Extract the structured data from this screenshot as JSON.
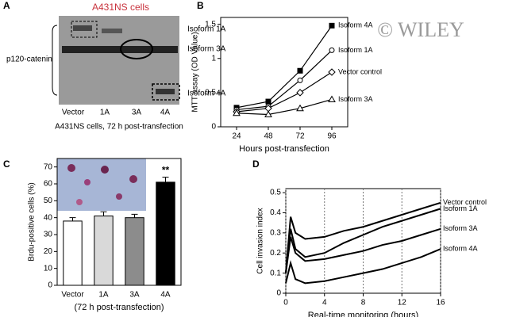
{
  "panels": [
    "A",
    "B",
    "C",
    "D"
  ],
  "blot": {
    "title": "A431NS cells",
    "protein": "p120-catenin",
    "bands": [
      "Isoform 1A",
      "Isoform 3A",
      "Isoform 4A"
    ],
    "lanes": [
      "Vector",
      "1A",
      "3A",
      "4A"
    ],
    "caption": "A431NS cells, 72 h post-transfection"
  },
  "watermark": "© WILEY",
  "chart_data": [
    {
      "type": "line",
      "xlabel": "Hours post-transfection",
      "ylabel": "MTT assay (OD  Value)",
      "x": [
        24,
        48,
        72,
        96
      ],
      "xlim": [
        12,
        108
      ],
      "xticks": [
        24,
        48,
        72,
        96
      ],
      "ylim": [
        0,
        1.6
      ],
      "yticks": [
        0,
        0.5,
        1,
        1.5
      ],
      "series": [
        {
          "name": "Isoform 4A",
          "color": "#000000",
          "marker": "square",
          "values": [
            0.28,
            0.37,
            0.82,
            1.48
          ]
        },
        {
          "name": "Isoform 1A",
          "color": "#000000",
          "marker": "circle",
          "values": [
            0.25,
            0.3,
            0.68,
            1.12
          ]
        },
        {
          "name": "Vector control",
          "color": "#000000",
          "marker": "diamond",
          "values": [
            0.22,
            0.27,
            0.5,
            0.8
          ]
        },
        {
          "name": "Isoform 3A",
          "color": "#000000",
          "marker": "triangle",
          "values": [
            0.2,
            0.18,
            0.27,
            0.4
          ]
        }
      ]
    },
    {
      "type": "bar",
      "xlabel": "(72 h post-transfection)",
      "ylabel": "Brdu-positive cells (%)",
      "categories": [
        "Vector",
        "1A",
        "3A",
        "4A"
      ],
      "values": [
        38,
        41,
        40,
        61
      ],
      "errors": [
        2,
        2.5,
        2,
        3
      ],
      "colors": [
        "#ffffff",
        "#d9d9d9",
        "#8c8c8c",
        "#000000"
      ],
      "ylim": [
        0,
        75
      ],
      "yticks": [
        0,
        10,
        20,
        30,
        40,
        50,
        60,
        70
      ],
      "annotation": {
        "text": "**",
        "category": "4A"
      }
    },
    {
      "type": "line",
      "xlabel": "Real-time monitoring (hours)",
      "ylabel": "Cell invasion index",
      "x": [
        0,
        0.5,
        1,
        2,
        4,
        6,
        8,
        10,
        12,
        14,
        16
      ],
      "xlim": [
        0,
        16
      ],
      "xticks": [
        0,
        4,
        8,
        12,
        16
      ],
      "xgrid": true,
      "ylim": [
        0,
        0.52
      ],
      "yticks": [
        0,
        0.1,
        0.2,
        0.3,
        0.4,
        0.5
      ],
      "series": [
        {
          "name": "Vector control",
          "color": "#000000",
          "values": [
            0.1,
            0.38,
            0.3,
            0.27,
            0.28,
            0.31,
            0.33,
            0.36,
            0.39,
            0.42,
            0.45
          ]
        },
        {
          "name": "Isoform 1A",
          "color": "#000000",
          "values": [
            0.1,
            0.32,
            0.22,
            0.18,
            0.2,
            0.25,
            0.29,
            0.33,
            0.36,
            0.39,
            0.42
          ]
        },
        {
          "name": "Isoform 3A",
          "color": "#000000",
          "values": [
            0.1,
            0.28,
            0.2,
            0.16,
            0.17,
            0.19,
            0.21,
            0.24,
            0.26,
            0.29,
            0.32
          ]
        },
        {
          "name": "Isoform 4A",
          "color": "#000000",
          "values": [
            0.05,
            0.15,
            0.07,
            0.05,
            0.06,
            0.08,
            0.1,
            0.12,
            0.15,
            0.18,
            0.22
          ]
        }
      ]
    }
  ]
}
